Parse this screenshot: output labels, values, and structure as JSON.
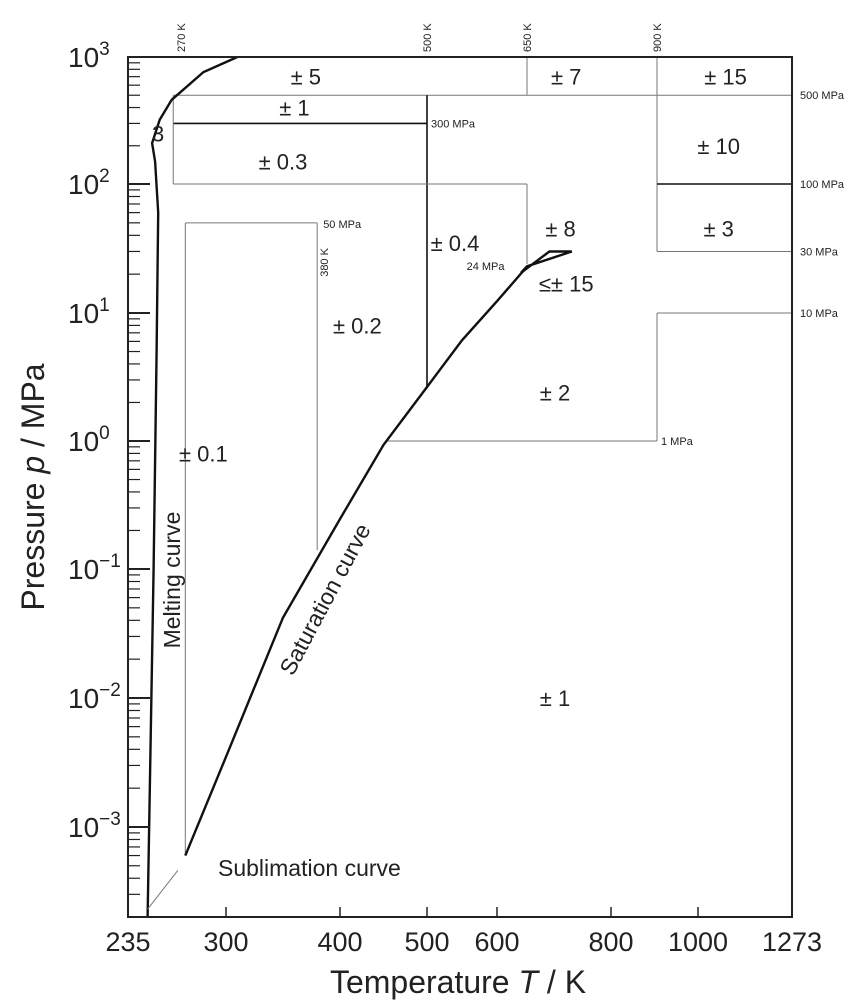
{
  "chart_data": {
    "type": "diagram",
    "xlabel": "Temperature T / K",
    "xlabel_main": "Temperature ",
    "xlabel_symbol": "T",
    "xlabel_unit": " / K",
    "ylabel": "Pressure p / MPa",
    "ylabel_main": "Pressure ",
    "ylabel_symbol": "p",
    "ylabel_unit": " / MPa",
    "x_scale": "piecewise",
    "x_ticks": [
      {
        "v": 235,
        "label": "235"
      },
      {
        "v": 300,
        "label": "300"
      },
      {
        "v": 400,
        "label": "400"
      },
      {
        "v": 500,
        "label": "500"
      },
      {
        "v": 600,
        "label": "600"
      },
      {
        "v": 800,
        "label": "800"
      },
      {
        "v": 1000,
        "label": "1000"
      },
      {
        "v": 1273,
        "label": "1273"
      }
    ],
    "y_scale": "log",
    "ylim": [
      0.0002,
      1000
    ],
    "y_ticks": [
      {
        "exp": 3,
        "base": "10",
        "sup": "3"
      },
      {
        "exp": 2,
        "base": "10",
        "sup": "2"
      },
      {
        "exp": 1,
        "base": "10",
        "sup": "1"
      },
      {
        "exp": 0,
        "base": "10",
        "sup": "0"
      },
      {
        "exp": -1,
        "base": "10",
        "sup": "−1"
      },
      {
        "exp": -2,
        "base": "10",
        "sup": "−2"
      },
      {
        "exp": -3,
        "base": "10",
        "sup": "−3"
      }
    ],
    "top_labels": [
      {
        "T": 270,
        "label": "270 K"
      },
      {
        "T": 500,
        "label": "500 K"
      },
      {
        "T": 650,
        "label": "650 K"
      },
      {
        "T": 900,
        "label": "900 K"
      }
    ],
    "right_labels": [
      {
        "p": 500,
        "label": "500 MPa"
      },
      {
        "p": 100,
        "label": "100 MPa"
      },
      {
        "p": 30,
        "label": "30 MPa"
      },
      {
        "p": 10,
        "label": "10 MPa"
      }
    ],
    "inner_labels": [
      {
        "T": 500,
        "p": 300,
        "label": "300 MPa"
      },
      {
        "T": 380,
        "p": 50,
        "label": "50 MPa"
      },
      {
        "T": 380,
        "p": 50,
        "label": "380 K"
      },
      {
        "T": 646,
        "p": 24,
        "label": "24 MPa"
      },
      {
        "T": 900,
        "p": 1,
        "label": "1 MPa"
      }
    ],
    "regions": [
      {
        "T": 370,
        "p": 700,
        "label": "± 5"
      },
      {
        "T": 720,
        "p": 700,
        "label": "± 7"
      },
      {
        "T": 1080,
        "p": 700,
        "label": "± 15"
      },
      {
        "T": 360,
        "p": 400,
        "label": "± 1"
      },
      {
        "T": 350,
        "p": 150,
        "label": "± 0.3"
      },
      {
        "T": 1060,
        "p": 200,
        "label": "± 10"
      },
      {
        "T": 1060,
        "p": 45,
        "label": "± 3"
      },
      {
        "T": 540,
        "p": 35,
        "label": "± 0.4"
      },
      {
        "T": 710,
        "p": 45,
        "label": "± 8"
      },
      {
        "T": 720,
        "p": 17,
        "label": "≤± 15"
      },
      {
        "T": 420,
        "p": 8,
        "label": "± 0.2"
      },
      {
        "T": 700,
        "p": 2.4,
        "label": "± 2"
      },
      {
        "T": 285,
        "p": 0.8,
        "label": "± 0.1"
      },
      {
        "T": 700,
        "p": 0.01,
        "label": "± 1"
      },
      {
        "T": 255,
        "p": 250,
        "label": "3"
      }
    ],
    "curve_labels": {
      "melting": "Melting curve",
      "saturation": "Saturation curve",
      "sublimation": "Sublimation curve"
    },
    "boundaries": [
      {
        "kind": "h",
        "p": 500,
        "T1": 265,
        "T2": 1273
      },
      {
        "kind": "v",
        "T": 650,
        "p1": 500,
        "p2": 1000
      },
      {
        "kind": "v",
        "T": 900,
        "p1": 30,
        "p2": 1000
      },
      {
        "kind": "h",
        "p": 300,
        "T1": 265,
        "T2": 500,
        "strong": true
      },
      {
        "kind": "v",
        "T": 500,
        "p1": 2.6,
        "p2": 500,
        "strong": true
      },
      {
        "kind": "v",
        "T": 265,
        "p1": 100,
        "p2": 500
      },
      {
        "kind": "h",
        "p": 100,
        "T1": 265,
        "T2": 650
      },
      {
        "kind": "v",
        "T": 650,
        "p1": 24,
        "p2": 100
      },
      {
        "kind": "h",
        "p": 100,
        "T1": 900,
        "T2": 1273,
        "strong": true
      },
      {
        "kind": "h",
        "p": 30,
        "T1": 900,
        "T2": 1273
      },
      {
        "kind": "h",
        "p": 50,
        "T1": 273,
        "T2": 380
      },
      {
        "kind": "v",
        "T": 380,
        "p1": 0.14,
        "p2": 50
      },
      {
        "kind": "v",
        "T": 273,
        "p1": 0.0006,
        "p2": 50
      },
      {
        "kind": "h",
        "p": 1,
        "T1": 452,
        "T2": 900
      },
      {
        "kind": "v",
        "T": 900,
        "p1": 1,
        "p2": 10
      },
      {
        "kind": "h",
        "p": 10,
        "T1": 900,
        "T2": 1273
      }
    ],
    "saturation_curve": [
      [
        273,
        0.0006
      ],
      [
        300,
        0.0035
      ],
      [
        350,
        0.042
      ],
      [
        400,
        0.246
      ],
      [
        450,
        0.932
      ],
      [
        500,
        2.64
      ],
      [
        550,
        6.12
      ],
      [
        600,
        12.35
      ],
      [
        647,
        22.06
      ]
    ],
    "melting_curve": [
      [
        248,
        0.0002
      ],
      [
        252,
        0.1
      ],
      [
        254,
        5
      ],
      [
        255,
        60
      ],
      [
        253,
        150
      ],
      [
        251,
        210
      ],
      [
        256,
        320
      ],
      [
        264,
        460
      ],
      [
        285,
        760
      ],
      [
        310,
        1000
      ]
    ],
    "triangle": [
      [
        640,
        20.5
      ],
      [
        690,
        30
      ],
      [
        730,
        30
      ],
      [
        650,
        23
      ]
    ],
    "sublimation_leader": [
      [
        248,
        0.00023
      ],
      [
        268,
        0.00046
      ]
    ]
  }
}
